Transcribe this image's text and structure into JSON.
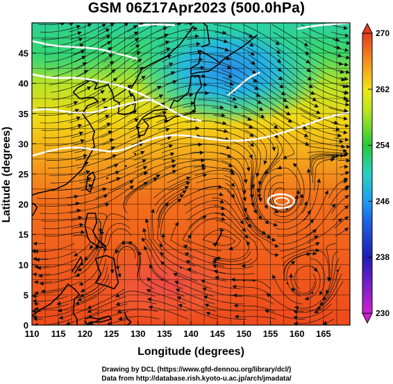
{
  "title": "GSM 06Z17Apr2023 (500.0hPa)",
  "xlabel": "Longitude (degrees)",
  "ylabel": "Latitude (degrees)",
  "credits": {
    "line1": "Drawing by DCL (https://www.gfd-dennou.org/library/dcl/)",
    "line2": "Data from http://database.rish.kyoto-u.ac.jp/arch/jmadata/"
  },
  "chart_data": {
    "type": "heatmap",
    "xlim": [
      110,
      170
    ],
    "ylim": [
      0,
      50
    ],
    "x_ticks": [
      110,
      115,
      120,
      125,
      130,
      135,
      140,
      145,
      150,
      155,
      160,
      165
    ],
    "y_ticks": [
      0,
      5,
      10,
      15,
      20,
      25,
      30,
      35,
      40,
      45
    ],
    "grid": true,
    "colorbar": {
      "min": 230,
      "max": 270,
      "ticks": [
        230,
        238,
        246,
        254,
        262,
        270
      ],
      "colors": [
        "#d01fd0",
        "#1e1eb4",
        "#1e8cf0",
        "#28d2c8",
        "#28c83c",
        "#b4e61e",
        "#f0e614",
        "#f5a01e",
        "#f05a1e",
        "#e63c1e"
      ]
    },
    "contour_features": [
      {
        "type": "closed-contour",
        "center_lon": 157,
        "center_lat": 20.5
      }
    ]
  }
}
